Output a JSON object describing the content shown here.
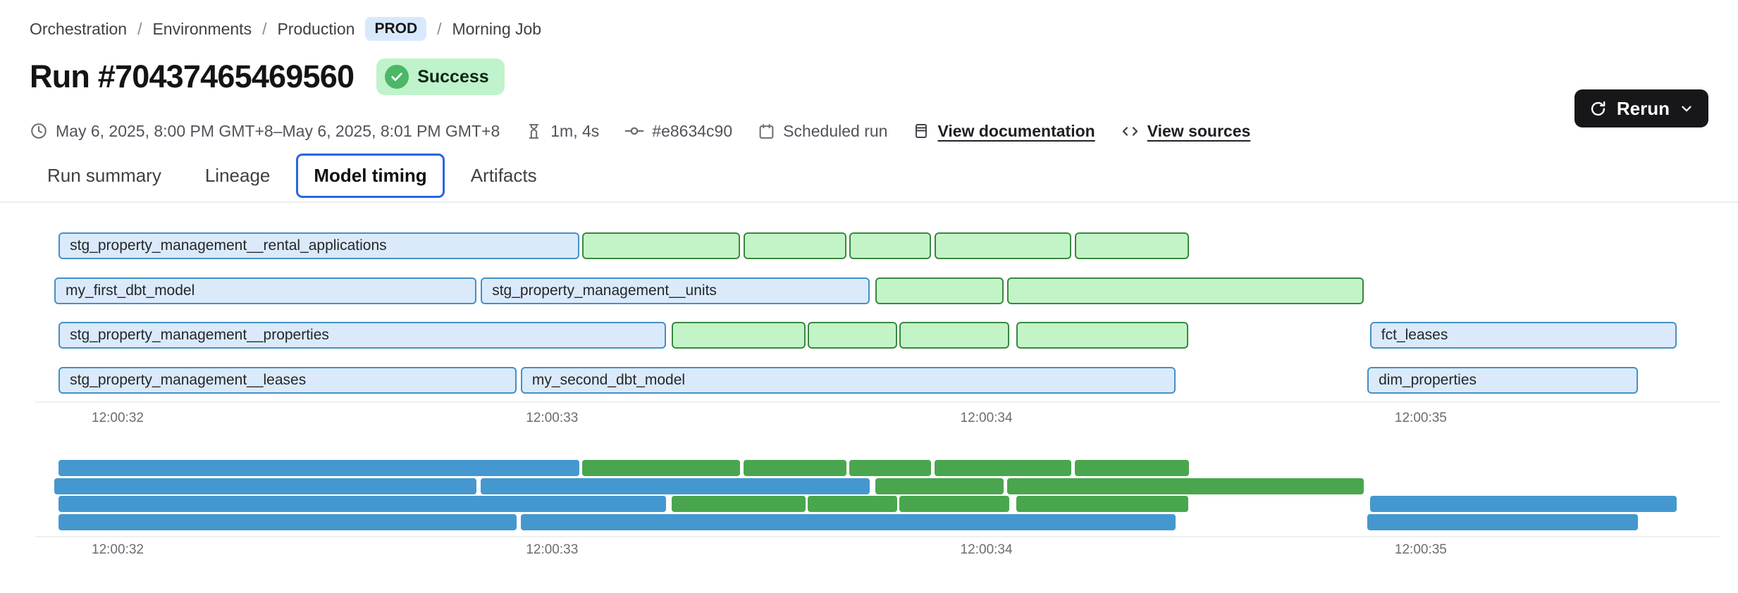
{
  "breadcrumb": {
    "separator": "/",
    "items": [
      "Orchestration",
      "Environments",
      "Production"
    ],
    "env_badge": "PROD",
    "current": "Morning Job"
  },
  "header": {
    "title": "Run #70437465469560",
    "status": "Success",
    "rerun_label": "Rerun"
  },
  "meta": {
    "time_range": "May 6, 2025, 8:00 PM GMT+8–May 6, 2025, 8:01 PM GMT+8",
    "duration": "1m, 4s",
    "commit": "#e8634c90",
    "trigger": "Scheduled run",
    "documentation_link": "View documentation",
    "sources_link": "View sources"
  },
  "tabs": [
    {
      "label": "Run summary",
      "active": false
    },
    {
      "label": "Lineage",
      "active": false
    },
    {
      "label": "Model timing",
      "active": true
    },
    {
      "label": "Artifacts",
      "active": false
    }
  ],
  "icons": {
    "status": "check-circle",
    "rerun": "refresh",
    "rerun_menu": "chevron-down",
    "time_range": "clock",
    "duration": "hourglass",
    "commit": "git-commit",
    "trigger": "calendar",
    "documentation": "document",
    "sources": "code"
  },
  "colors": {
    "accent_blue": "#2467e3",
    "badge_blue_bg": "#d9e9fd",
    "success_bg": "#bff3cb",
    "success_icon": "#4cb767",
    "bar_blue_fill": "#daeafb",
    "bar_blue_border": "#4590c5",
    "bar_green_fill": "#c3f4c7",
    "bar_green_border": "#39883f",
    "mini_blue": "#4598cf",
    "mini_green": "#4aa64e",
    "button_dark": "#17171a"
  },
  "chart_data": {
    "type": "gantt",
    "title": "Model timing",
    "x_axis": {
      "tick_labels": [
        "12:00:32",
        "12:00:33",
        "12:00:34",
        "12:00:35"
      ],
      "tick_seconds": [
        0,
        1,
        2,
        3
      ]
    },
    "rows": [
      {
        "bars": [
          {
            "label": "stg_property_management__rental_applications",
            "kind": "blue",
            "start": -0.136,
            "end": 1.063
          },
          {
            "label": "",
            "kind": "green",
            "start": 1.07,
            "end": 1.432
          },
          {
            "label": "",
            "kind": "green",
            "start": 1.441,
            "end": 1.677
          },
          {
            "label": "",
            "kind": "green",
            "start": 1.685,
            "end": 1.873
          },
          {
            "label": "",
            "kind": "green",
            "start": 1.88,
            "end": 2.195
          },
          {
            "label": "",
            "kind": "green",
            "start": 2.203,
            "end": 2.467
          }
        ]
      },
      {
        "bars": [
          {
            "label": "my_first_dbt_model",
            "kind": "blue",
            "start": -0.146,
            "end": 0.826
          },
          {
            "label": "stg_property_management__units",
            "kind": "blue",
            "start": 0.836,
            "end": 1.731
          },
          {
            "label": "",
            "kind": "green",
            "start": 1.745,
            "end": 2.039
          },
          {
            "label": "",
            "kind": "green",
            "start": 2.047,
            "end": 2.868
          }
        ]
      },
      {
        "bars": [
          {
            "label": "stg_property_management__properties",
            "kind": "blue",
            "start": -0.136,
            "end": 1.263
          },
          {
            "label": "",
            "kind": "green",
            "start": 1.276,
            "end": 1.584
          },
          {
            "label": "",
            "kind": "green",
            "start": 1.588,
            "end": 1.794
          },
          {
            "label": "",
            "kind": "green",
            "start": 1.8,
            "end": 2.052
          },
          {
            "label": "",
            "kind": "green",
            "start": 2.068,
            "end": 2.464
          },
          {
            "label": "fct_leases",
            "kind": "blue",
            "start": 2.883,
            "end": 3.589
          }
        ]
      },
      {
        "bars": [
          {
            "label": "stg_property_management__leases",
            "kind": "blue",
            "start": -0.136,
            "end": 0.919
          },
          {
            "label": "my_second_dbt_model",
            "kind": "blue",
            "start": 0.928,
            "end": 2.435
          },
          {
            "label": "dim_properties",
            "kind": "blue",
            "start": 2.877,
            "end": 3.5
          }
        ]
      }
    ]
  }
}
